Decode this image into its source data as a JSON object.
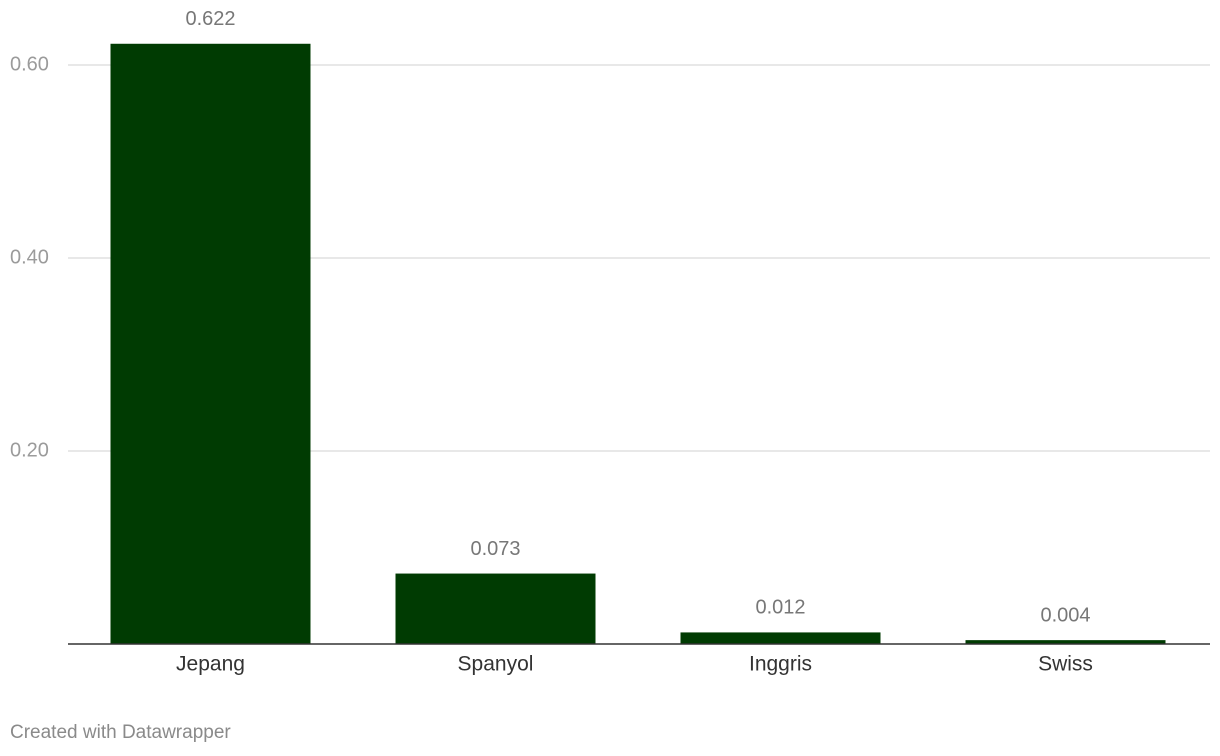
{
  "chart_data": {
    "type": "bar",
    "categories": [
      "Jepang",
      "Spanyol",
      "Inggris",
      "Swiss"
    ],
    "values": [
      0.622,
      0.073,
      0.012,
      0.004
    ],
    "color": "#003b02",
    "ylim": [
      0,
      0.65
    ],
    "yticks": [
      {
        "value": 0.2,
        "label": "0.20"
      },
      {
        "value": 0.4,
        "label": "0.40"
      },
      {
        "value": 0.6,
        "label": "0.60"
      }
    ],
    "grid": true,
    "footer": "Created with Datawrapper"
  }
}
